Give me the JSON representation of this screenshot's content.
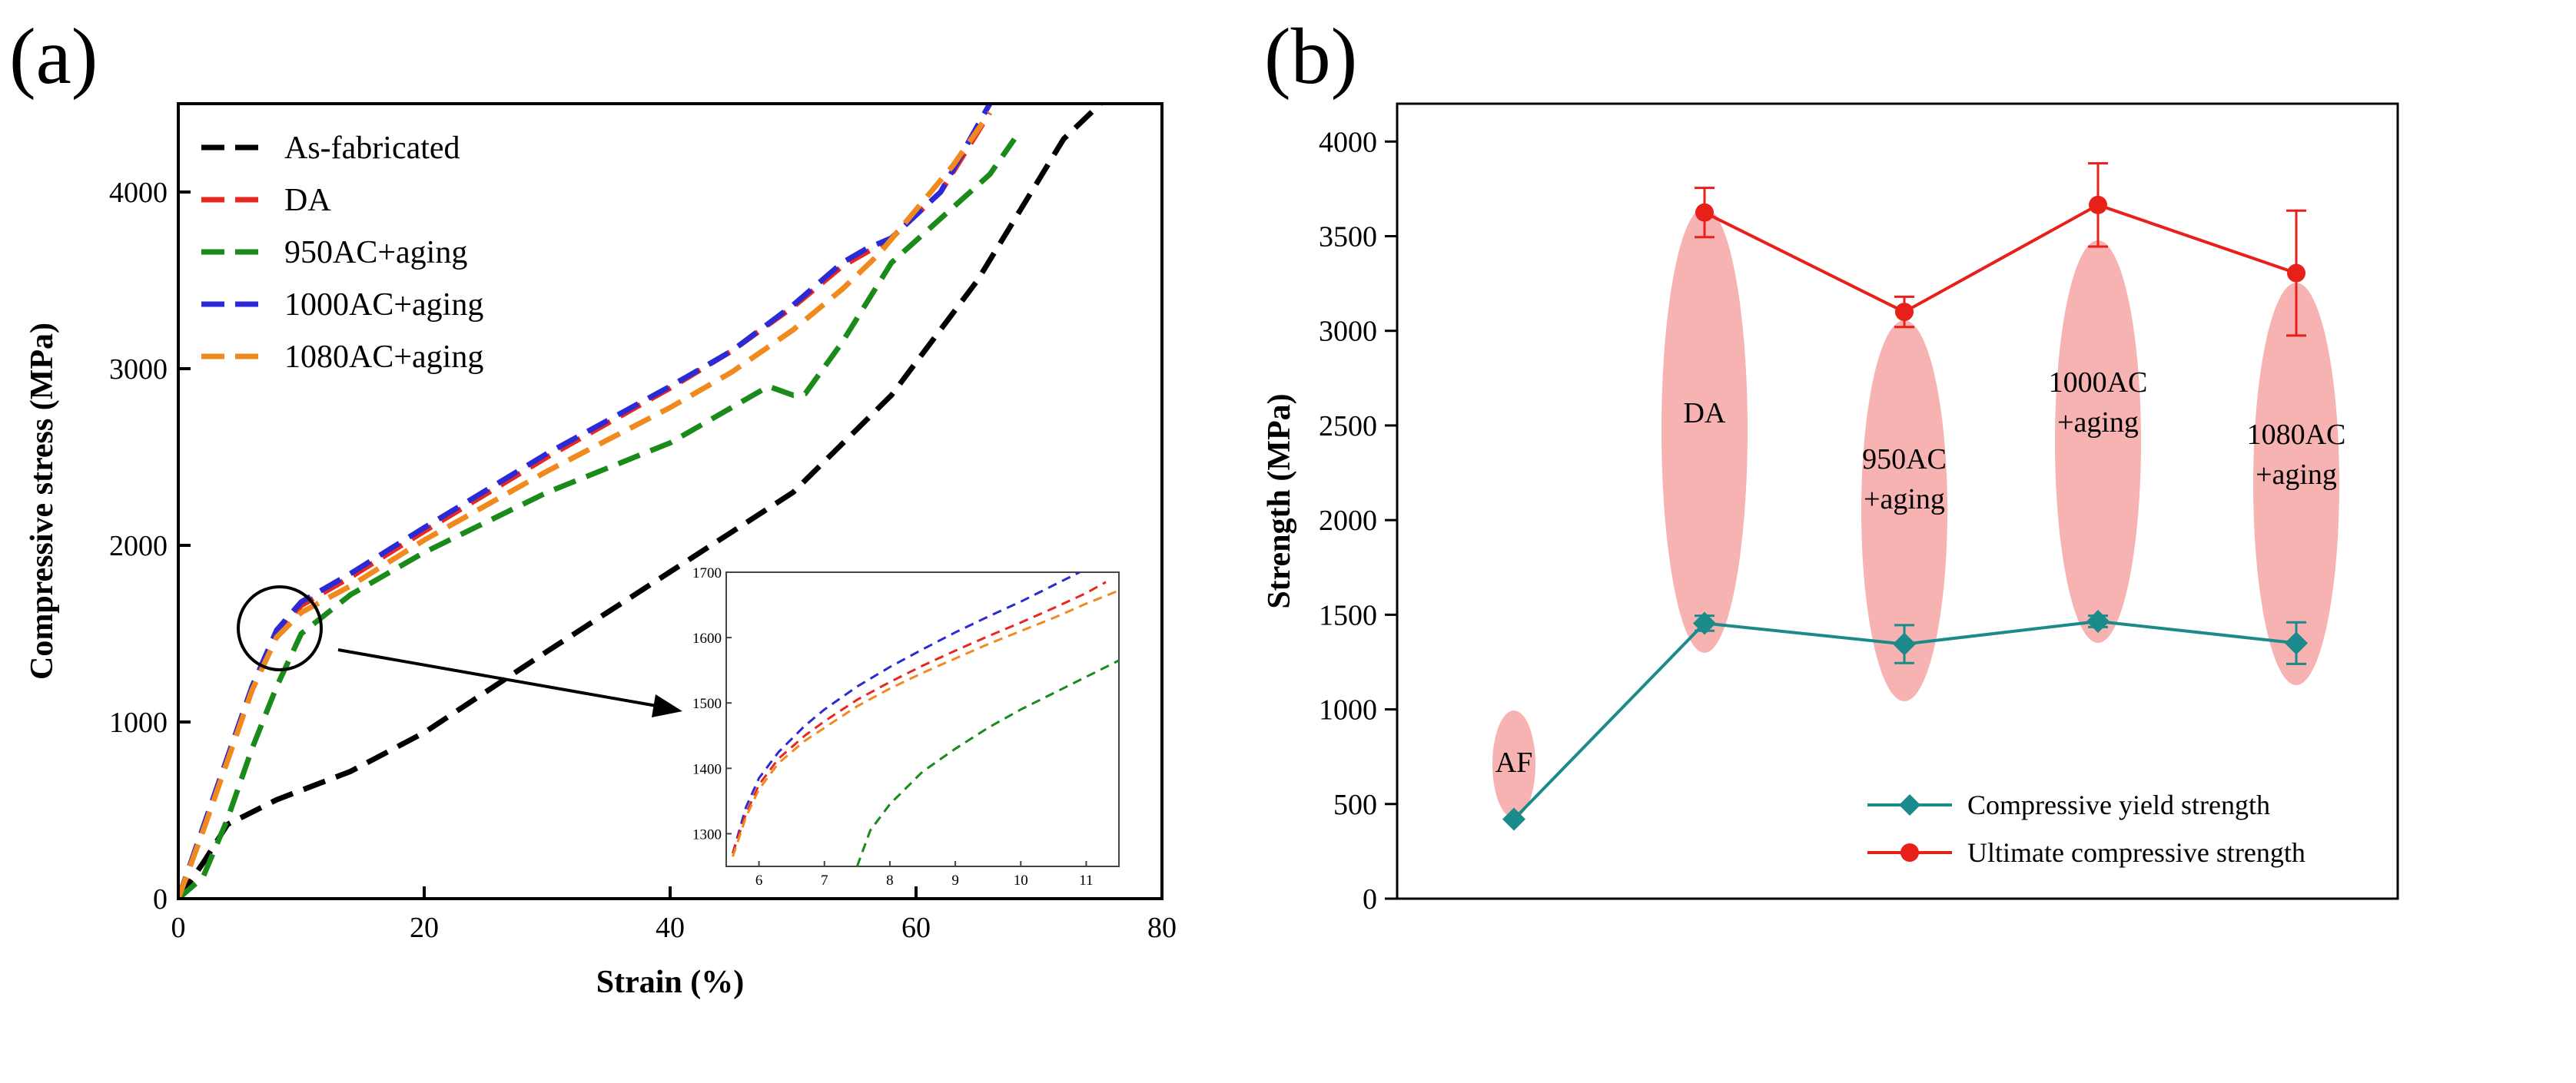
{
  "chart_data": [
    {
      "panel": "(a)",
      "type": "line",
      "xlabel": "Strain (%)",
      "ylabel": "Compressive stress (MPa)",
      "xlim": [
        0,
        80
      ],
      "ylim": [
        0,
        4500
      ],
      "xticks": [
        0,
        20,
        40,
        60,
        80
      ],
      "yticks": [
        0,
        1000,
        2000,
        3000,
        4000
      ],
      "legend_position": "top-left",
      "series": [
        {
          "name": "As-fabricated",
          "color": "#000000",
          "x": [
            0,
            2,
            4,
            8,
            14,
            20,
            30,
            40,
            50,
            58,
            65,
            72,
            75
          ],
          "y": [
            0,
            200,
            420,
            560,
            720,
            940,
            1400,
            1850,
            2300,
            2850,
            3500,
            4300,
            4500
          ]
        },
        {
          "name": "DA",
          "color": "#e8281e",
          "x": [
            0,
            2,
            4,
            6,
            8,
            10,
            14,
            20,
            30,
            40,
            45,
            50,
            54,
            56,
            58,
            62,
            66
          ],
          "y": [
            0,
            400,
            800,
            1200,
            1500,
            1660,
            1820,
            2080,
            2500,
            2890,
            3100,
            3350,
            3580,
            3660,
            3740,
            4000,
            4450
          ]
        },
        {
          "name": "950AC+aging",
          "color": "#1a8a1a",
          "x": [
            0,
            2,
            4,
            6,
            8,
            10,
            14,
            20,
            30,
            40,
            46,
            48,
            50,
            51,
            54,
            58,
            62,
            66,
            68
          ],
          "y": [
            0,
            120,
            450,
            850,
            1200,
            1500,
            1720,
            1960,
            2300,
            2580,
            2820,
            2900,
            2850,
            2860,
            3150,
            3600,
            3850,
            4100,
            4300
          ]
        },
        {
          "name": "1000AC+aging",
          "color": "#2a2ad6",
          "x": [
            0,
            2,
            4,
            6,
            8,
            10,
            14,
            20,
            30,
            40,
            45,
            50,
            54,
            56,
            58,
            62,
            66
          ],
          "y": [
            0,
            400,
            800,
            1200,
            1520,
            1680,
            1840,
            2100,
            2520,
            2900,
            3100,
            3360,
            3600,
            3680,
            3740,
            4000,
            4500
          ]
        },
        {
          "name": "1080AC+aging",
          "color": "#f08a1e",
          "x": [
            0,
            2,
            4,
            6,
            8,
            10,
            14,
            20,
            30,
            40,
            45,
            50,
            54,
            57,
            60,
            63,
            66
          ],
          "y": [
            0,
            380,
            780,
            1180,
            1480,
            1620,
            1770,
            2030,
            2420,
            2780,
            2980,
            3220,
            3450,
            3650,
            3900,
            4150,
            4450
          ]
        }
      ],
      "inset": {
        "xlim": [
          5.5,
          11.5
        ],
        "ylim": [
          1250,
          1700
        ],
        "xticks": [
          6,
          7,
          8,
          9,
          10,
          11
        ],
        "yticks": [
          1300,
          1400,
          1500,
          1600,
          1700
        ],
        "series": [
          {
            "name": "1000AC+aging",
            "color": "#2a2ad6",
            "x": [
              5.6,
              5.8,
              6.0,
              6.3,
              6.7,
              7.0,
              7.5,
              8.0,
              8.5,
              9.0,
              9.5,
              10.0,
              10.5,
              10.9
            ],
            "y": [
              1270,
              1340,
              1385,
              1425,
              1465,
              1490,
              1525,
              1555,
              1582,
              1608,
              1632,
              1655,
              1680,
              1700
            ]
          },
          {
            "name": "DA",
            "color": "#e8281e",
            "x": [
              5.6,
              5.8,
              6.0,
              6.3,
              6.7,
              7.0,
              7.5,
              8.0,
              8.5,
              9.0,
              9.5,
              10.0,
              10.5,
              11.0,
              11.3
            ],
            "y": [
              1270,
              1330,
              1375,
              1415,
              1450,
              1472,
              1505,
              1532,
              1557,
              1580,
              1602,
              1623,
              1645,
              1668,
              1685
            ]
          },
          {
            "name": "1080AC+aging",
            "color": "#f08a1e",
            "x": [
              5.6,
              5.8,
              6.0,
              6.3,
              6.7,
              7.0,
              7.5,
              8.0,
              8.5,
              9.0,
              9.5,
              10.0,
              10.5,
              11.0,
              11.5
            ],
            "y": [
              1265,
              1325,
              1368,
              1408,
              1442,
              1462,
              1495,
              1522,
              1546,
              1568,
              1590,
              1610,
              1630,
              1652,
              1672
            ]
          },
          {
            "name": "950AC+aging",
            "color": "#1a8a1a",
            "x": [
              7.5,
              7.7,
              8.0,
              8.5,
              9.0,
              9.5,
              10.0,
              10.5,
              11.0,
              11.5
            ],
            "y": [
              1250,
              1305,
              1345,
              1395,
              1430,
              1462,
              1490,
              1515,
              1540,
              1565
            ]
          }
        ]
      }
    },
    {
      "panel": "(b)",
      "type": "line",
      "ylabel": "Strength (MPa)",
      "ylim": [
        0,
        4200
      ],
      "yticks": [
        0,
        500,
        1000,
        1500,
        2000,
        2500,
        3000,
        3500,
        4000
      ],
      "legend_position": "bottom-right",
      "categories": [
        "AF",
        "DA",
        "950AC +aging",
        "1000AC +aging",
        "1080AC +aging"
      ],
      "ellipse_labels": [
        {
          "lines": [
            "AF"
          ]
        },
        {
          "lines": [
            "DA"
          ]
        },
        {
          "lines": [
            "950AC",
            "+aging"
          ]
        },
        {
          "lines": [
            "1000AC",
            "+aging"
          ]
        },
        {
          "lines": [
            "1080AC",
            "+aging"
          ]
        }
      ],
      "series": [
        {
          "name": "Compressive yield strength",
          "color": "#1a8a8a",
          "marker": "diamond",
          "values": [
            420,
            1455,
            1345,
            1465,
            1350
          ],
          "errors": [
            0,
            40,
            100,
            30,
            110
          ]
        },
        {
          "name": "Ultimate compressive strength",
          "color": "#e8201a",
          "marker": "circle",
          "values": [
            null,
            3625,
            3100,
            3665,
            3305
          ],
          "errors": [
            0,
            130,
            80,
            220,
            330
          ]
        }
      ],
      "ellipse_color": "#f4a6a4"
    }
  ]
}
